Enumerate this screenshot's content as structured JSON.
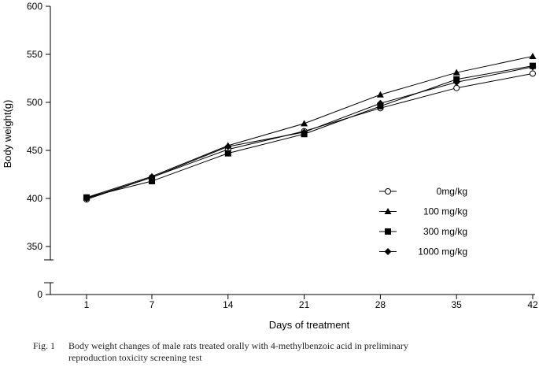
{
  "chart_data": {
    "type": "line",
    "xlabel": "Days of treatment",
    "ylabel": "Body weight(g)",
    "x": [
      1,
      7,
      14,
      21,
      28,
      35,
      42
    ],
    "x_tick_labels": [
      "1",
      "7",
      "14",
      "21",
      "28",
      "35",
      "42"
    ],
    "y_tick_labels_upper": [
      "350",
      "400",
      "450",
      "500",
      "550",
      "600"
    ],
    "y_tick_labels_lower": [
      "0"
    ],
    "ylim": [
      350,
      600
    ],
    "axis_break": true,
    "series": [
      {
        "name": "0mg/kg",
        "marker": "circle-open",
        "values": [
          399,
          422,
          451,
          470,
          494,
          515,
          530
        ]
      },
      {
        "name": "100 mg/kg",
        "marker": "triangle",
        "values": [
          401,
          423,
          455,
          478,
          508,
          531,
          548
        ]
      },
      {
        "name": "300 mg/kg",
        "marker": "square",
        "values": [
          401,
          418,
          447,
          467,
          496,
          524,
          538
        ]
      },
      {
        "name": "1000 mg/kg",
        "marker": "diamond",
        "values": [
          400,
          422,
          454,
          469,
          499,
          521,
          537
        ]
      }
    ]
  },
  "caption": {
    "label": "Fig. 1",
    "line1": "Body weight changes of male rats treated orally with 4-methylbenzoic acid in preliminary",
    "line2": "reproduction toxicity screening test"
  }
}
